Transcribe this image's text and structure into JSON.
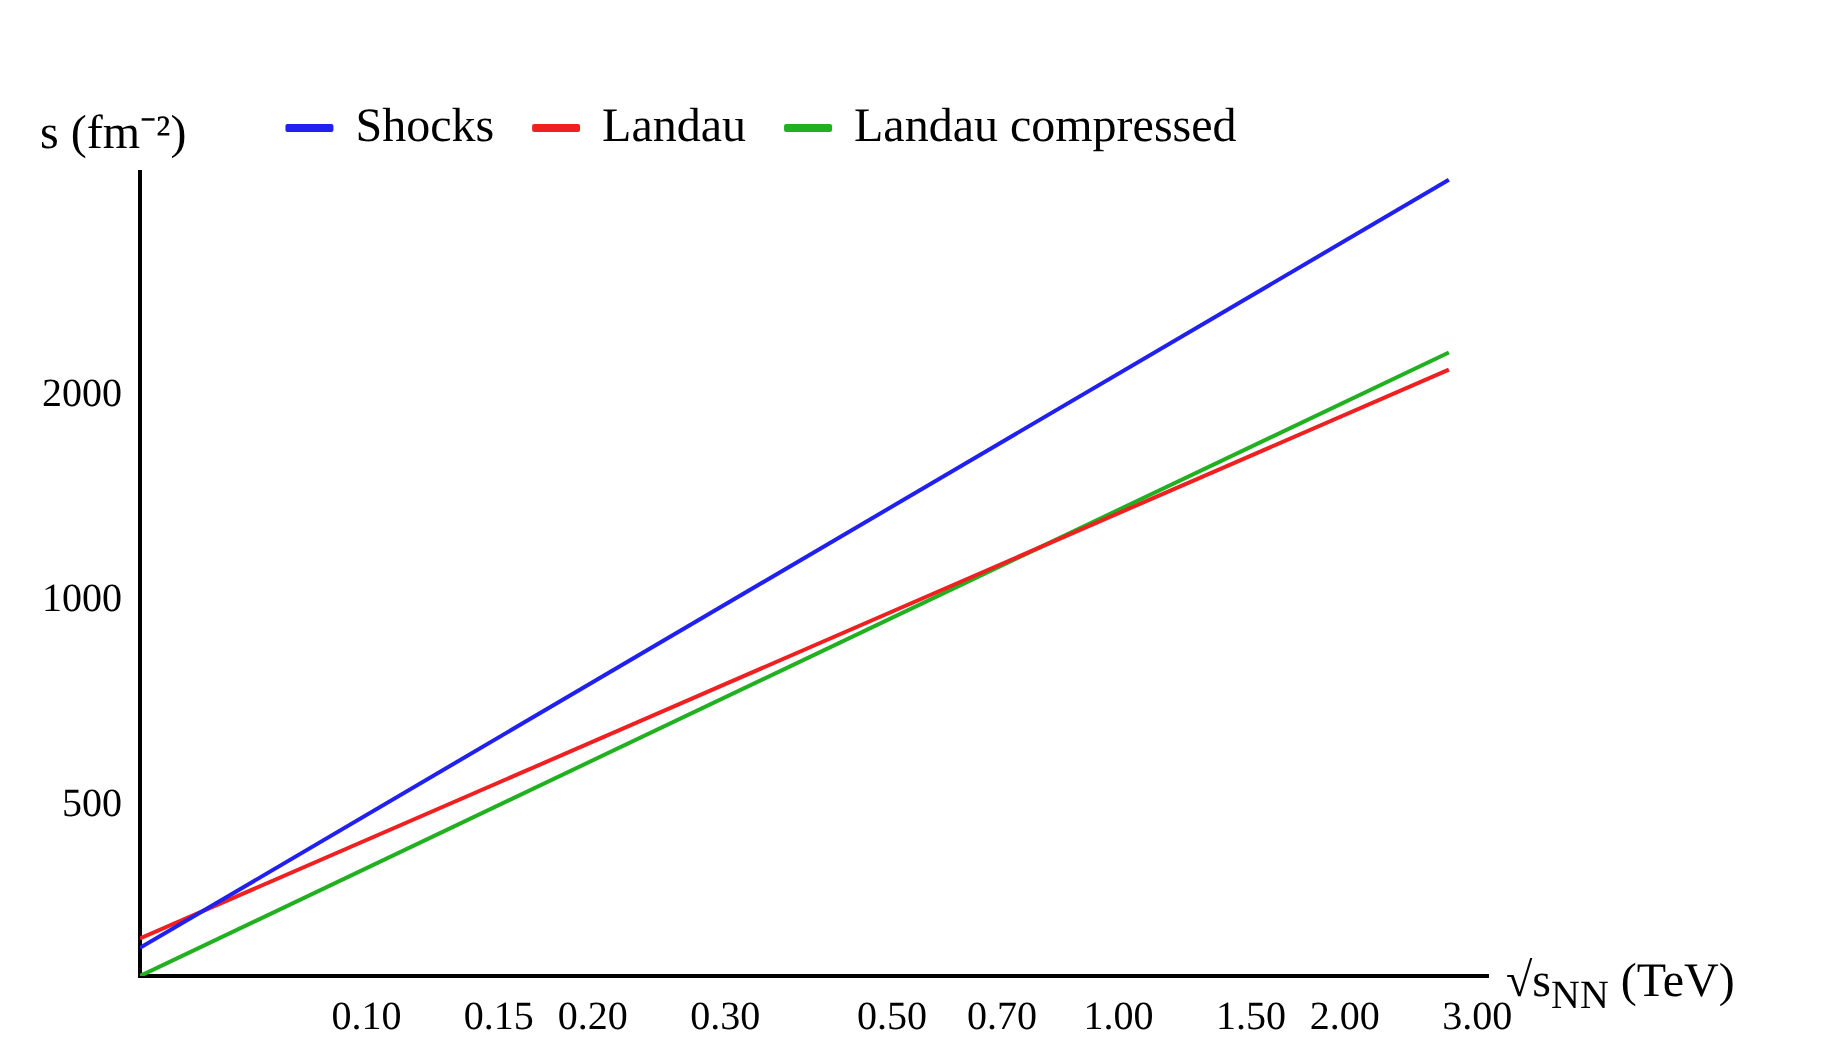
{
  "chart_data": {
    "type": "line",
    "xlabel": "√s$_{NN}$ (TeV)",
    "ylabel": "s (fm⁻²)",
    "x": [
      0.05,
      2.75
    ],
    "series": [
      {
        "name": "Shocks",
        "color": "#2020f0",
        "values": [
          309,
          4140
        ]
      },
      {
        "name": "Landau",
        "color": "#f02020",
        "values": [
          319,
          2180
        ]
      },
      {
        "name": "Landau compressed",
        "color": "#20b020",
        "values": [
          281,
          2310
        ]
      }
    ],
    "xlim": [
      0.05,
      3.1
    ],
    "ylim": [
      281,
      4250
    ],
    "xticks": [
      {
        "value": 0.1,
        "label": "0.10"
      },
      {
        "value": 0.15,
        "label": "0.15"
      },
      {
        "value": 0.2,
        "label": "0.20"
      },
      {
        "value": 0.3,
        "label": "0.30"
      },
      {
        "value": 0.5,
        "label": "0.50"
      },
      {
        "value": 0.7,
        "label": "0.70"
      },
      {
        "value": 1,
        "label": "1.00"
      },
      {
        "value": 1.5,
        "label": "1.50"
      },
      {
        "value": 2,
        "label": "2.00"
      },
      {
        "value": 3,
        "label": "3.00"
      }
    ],
    "yticks": [
      500,
      1000,
      2000
    ],
    "log": "xy",
    "grid": false,
    "legend": "top",
    "marker": "none",
    "line_style": "solid"
  }
}
